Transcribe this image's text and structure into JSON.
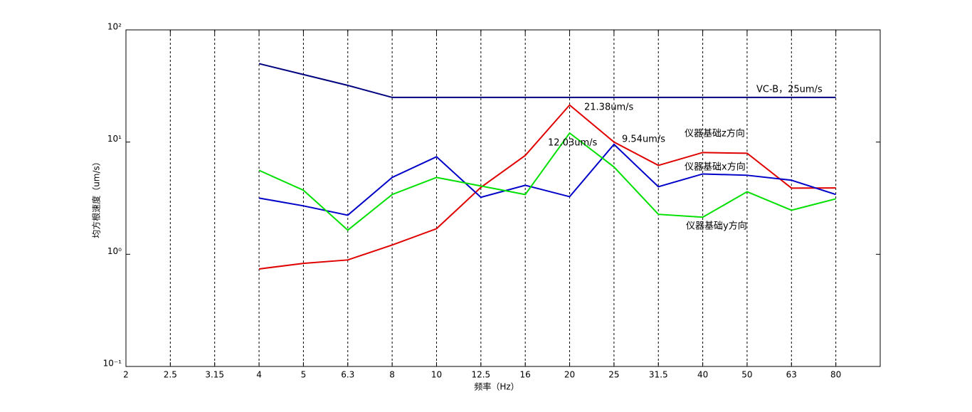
{
  "chart_data": {
    "type": "line",
    "x_label": "频率（Hz）",
    "y_label": "均方根速度（um/s）",
    "categories": [
      "2",
      "2.5",
      "3.15",
      "4",
      "5",
      "6.3",
      "8",
      "10",
      "12.5",
      "16",
      "20",
      "25",
      "31.5",
      "40",
      "50",
      "63",
      "80"
    ],
    "log_y": true,
    "grid": "x",
    "ylim": [
      0.1,
      100
    ],
    "yticks": [
      {
        "value": 0.1,
        "label": "10⁻¹"
      },
      {
        "value": 1,
        "label": "10⁰"
      },
      {
        "value": 10,
        "label": "10¹"
      },
      {
        "value": 100,
        "label": "10²"
      }
    ],
    "series": [
      {
        "color": "#00007f",
        "values": [
          null,
          null,
          null,
          50,
          40,
          32,
          25,
          25,
          25,
          25,
          25,
          25,
          25,
          25,
          25,
          25,
          25
        ]
      },
      {
        "color": "#e00000",
        "values": [
          null,
          null,
          null,
          0.74,
          0.83,
          0.89,
          1.21,
          1.69,
          3.95,
          7.6,
          21.38,
          10,
          6.2,
          8.07,
          7.95,
          3.89,
          3.9
        ]
      },
      {
        "color": "#0000c8",
        "values": [
          null,
          null,
          null,
          3.17,
          2.7,
          2.23,
          4.84,
          7.4,
          3.22,
          4.12,
          3.26,
          9.54,
          4.0,
          5.2,
          5.06,
          4.57,
          3.41
        ]
      },
      {
        "color": "#00e000",
        "values": [
          null,
          null,
          null,
          5.6,
          3.72,
          1.64,
          3.41,
          4.84,
          4.06,
          3.41,
          12.03,
          6.0,
          2.27,
          2.14,
          3.61,
          2.47,
          3.12
        ]
      }
    ],
    "annotations": [
      "VC-B，25um/s",
      "21.38um/s",
      "9.54um/s",
      "12.03um/s",
      "仪器基础z方向",
      "仪器基础x方向",
      "仪器基础y方向"
    ]
  }
}
